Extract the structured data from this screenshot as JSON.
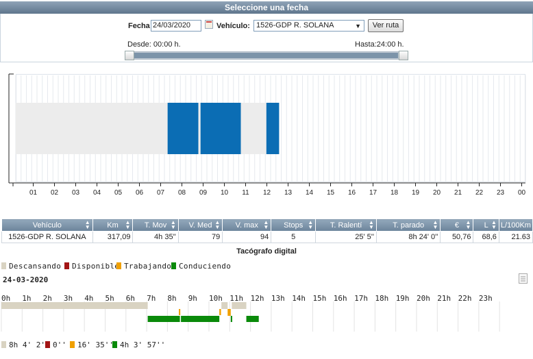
{
  "header": {
    "title": "Seleccione una fecha"
  },
  "filters": {
    "date_label": "Fecha",
    "date_value": "24/03/2020",
    "vehicle_label": "Vehículo:",
    "vehicle_value": "1526-GDP R. SOLANA",
    "route_button": "Ver ruta",
    "from_label": "Desde: 00:00 h.",
    "to_label": "Hasta:24:00 h.",
    "slider_range": [
      0,
      24
    ]
  },
  "chart_data": {
    "type": "bar",
    "x_ticks": [
      "01",
      "02",
      "03",
      "04",
      "05",
      "06",
      "07",
      "08",
      "09",
      "10",
      "11",
      "12",
      "13",
      "14",
      "15",
      "16",
      "17",
      "18",
      "19",
      "20",
      "21",
      "22",
      "23",
      "00"
    ],
    "xlim": [
      0,
      24
    ],
    "segments": [
      {
        "start": 0.0,
        "end": 7.15,
        "state": "idle",
        "color": "#ececec"
      },
      {
        "start": 7.15,
        "end": 8.6,
        "state": "moving",
        "color": "#0b6db4"
      },
      {
        "start": 8.6,
        "end": 8.7,
        "state": "idle",
        "color": "#ececec"
      },
      {
        "start": 8.7,
        "end": 10.6,
        "state": "moving",
        "color": "#0b6db4"
      },
      {
        "start": 10.6,
        "end": 11.8,
        "state": "idle",
        "color": "#ececec"
      },
      {
        "start": 11.8,
        "end": 12.4,
        "state": "moving",
        "color": "#0b6db4"
      }
    ]
  },
  "table": {
    "columns": [
      "Vehículo",
      "Km",
      "T. Mov",
      "V. Med",
      "V. max",
      "Stops",
      "T. Ralentí",
      "T. parado",
      "€",
      "L",
      "L/100Km"
    ],
    "rows": [
      [
        "1526-GDP R. SOLANA",
        "317,09",
        "4h 35''",
        "79",
        "94",
        "5",
        "25' 5''",
        "8h 24' 0''",
        "50,76",
        "68,6",
        "21.63"
      ]
    ]
  },
  "tachograph": {
    "title": "Tacógrafo digital",
    "date": "24-03-2020",
    "legend": [
      {
        "label": "Descansando",
        "color": "#d9d3c2"
      },
      {
        "label": "Disponible",
        "color": "#a31515"
      },
      {
        "label": "Trabajando",
        "color": "#f0a000"
      },
      {
        "label": "Conduciendo",
        "color": "#0a8a0a"
      }
    ],
    "hours": [
      "0h",
      "1h",
      "2h",
      "3h",
      "4h",
      "5h",
      "6h",
      "7h",
      "8h",
      "9h",
      "10h",
      "11h",
      "12h",
      "13h",
      "14h",
      "15h",
      "16h",
      "17h",
      "18h",
      "19h",
      "20h",
      "21h",
      "22h",
      "23h"
    ],
    "activities": [
      {
        "state": "rest",
        "start": 0.0,
        "end": 7.05
      },
      {
        "state": "drive",
        "start": 7.05,
        "end": 8.6
      },
      {
        "state": "work",
        "start": 8.55,
        "end": 8.62
      },
      {
        "state": "drive",
        "start": 8.65,
        "end": 10.5
      },
      {
        "state": "work",
        "start": 10.5,
        "end": 10.58
      },
      {
        "state": "rest",
        "start": 10.6,
        "end": 10.9
      },
      {
        "state": "work",
        "start": 10.9,
        "end": 11.05
      },
      {
        "state": "drive",
        "start": 11.05,
        "end": 11.12
      },
      {
        "state": "rest",
        "start": 11.1,
        "end": 11.8
      },
      {
        "state": "drive",
        "start": 11.8,
        "end": 12.4
      }
    ],
    "totals": [
      {
        "value": "8h 4' 2''",
        "color": "#d9d3c2"
      },
      {
        "value": "0''",
        "color": "#a31515"
      },
      {
        "value": "16' 35''",
        "color": "#f0a000"
      },
      {
        "value": "4h 3' 57''",
        "color": "#0a8a0a"
      }
    ]
  }
}
